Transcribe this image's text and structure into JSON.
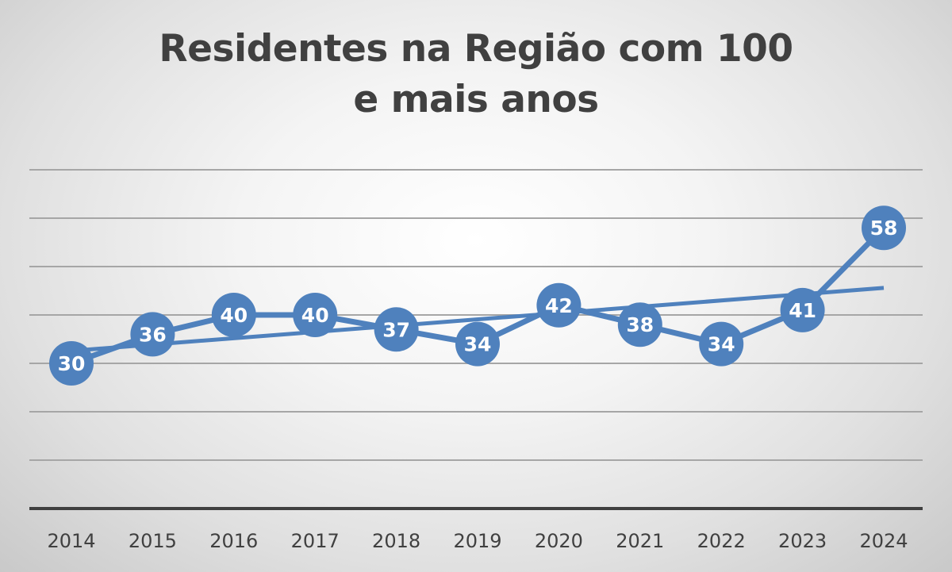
{
  "chart_data": {
    "type": "line",
    "title_lines": [
      "Residentes na Região com 100",
      "e mais anos"
    ],
    "categories": [
      "2014",
      "2015",
      "2016",
      "2017",
      "2018",
      "2019",
      "2020",
      "2021",
      "2022",
      "2023",
      "2024"
    ],
    "series": [
      {
        "values": [
          30,
          36,
          40,
          40,
          37,
          34,
          42,
          38,
          34,
          41,
          58
        ]
      }
    ],
    "trendline": {
      "type": "linear"
    },
    "ylim": [
      0,
      70
    ],
    "gridlines": true,
    "legend": "none",
    "colors": {
      "series": "#4f81bd",
      "label_text": "#ffffff",
      "gridline": "#a6a6a6",
      "axis": "#404040",
      "tick_text": "#404040",
      "title": "#404040"
    }
  }
}
